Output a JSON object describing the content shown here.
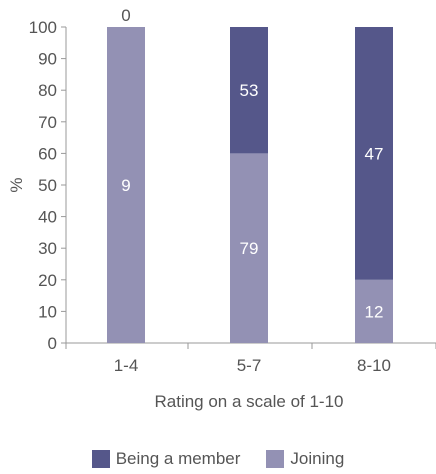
{
  "chart_data": {
    "type": "bar",
    "stacked": true,
    "categories": [
      "1-4",
      "5-7",
      "8-10"
    ],
    "series": [
      {
        "name": "Joining",
        "color": "#9391b4",
        "values": [
          100,
          60,
          20
        ],
        "labels": [
          "9",
          "79",
          "12"
        ]
      },
      {
        "name": "Being a member",
        "color": "#55578a",
        "values": [
          0,
          40,
          80
        ],
        "labels": [
          "0",
          "53",
          "47"
        ]
      }
    ],
    "ylabel": "%",
    "xlabel": "Rating on a scale of 1-10",
    "ylim": [
      0,
      100
    ],
    "yticks": [
      "0",
      "10",
      "20",
      "30",
      "40",
      "50",
      "60",
      "70",
      "80",
      "90",
      "100"
    ],
    "grid": false,
    "legend": {
      "placement": "bottom",
      "items": [
        {
          "name": "Being a member",
          "color": "#55578a"
        },
        {
          "name": "Joining",
          "color": "#9391b4"
        }
      ]
    }
  }
}
